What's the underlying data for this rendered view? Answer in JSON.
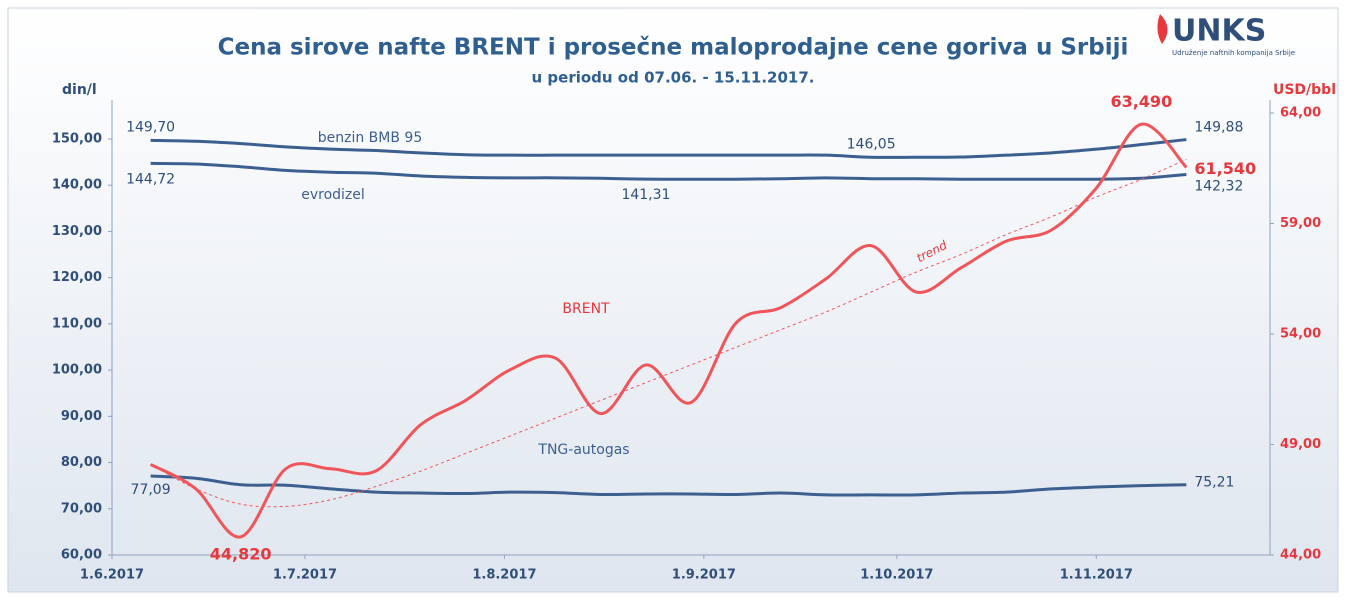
{
  "chart_data": {
    "type": "line",
    "title": "Cena sirove nafte BRENT i prosečne maloprodajne cene goriva u Srbiji",
    "subtitle": "u periodu od 07.06. - 15.11.2017.",
    "y_label": "din/l",
    "y2_label": "USD/bbl",
    "logo": "UNKS",
    "logo_subtitle": "Udruženje naftnih kompanija Srbije",
    "x": [
      "2017-06-07",
      "2017-06-14",
      "2017-06-21",
      "2017-06-28",
      "2017-07-05",
      "2017-07-12",
      "2017-07-19",
      "2017-07-26",
      "2017-08-02",
      "2017-08-09",
      "2017-08-16",
      "2017-08-23",
      "2017-08-30",
      "2017-09-06",
      "2017-09-13",
      "2017-09-20",
      "2017-09-27",
      "2017-10-04",
      "2017-10-11",
      "2017-10-18",
      "2017-10-25",
      "2017-11-01",
      "2017-11-08",
      "2017-11-15"
    ],
    "xlim": [
      "2017-06-01",
      "2017-11-28"
    ],
    "xticks": [
      {
        "value": "2017-06-01",
        "label": "1.6.2017"
      },
      {
        "value": "2017-07-01",
        "label": "1.7.2017"
      },
      {
        "value": "2017-08-01",
        "label": "1.8.2017"
      },
      {
        "value": "2017-09-01",
        "label": "1.9.2017"
      },
      {
        "value": "2017-10-01",
        "label": "1.10.2017"
      },
      {
        "value": "2017-11-01",
        "label": "1.11.2017"
      }
    ],
    "ylim": [
      60,
      150
    ],
    "yticks": [
      {
        "value": 60,
        "label": "60,00"
      },
      {
        "value": 70,
        "label": "70,00"
      },
      {
        "value": 80,
        "label": "80,00"
      },
      {
        "value": 90,
        "label": "90,00"
      },
      {
        "value": 100,
        "label": "100,00"
      },
      {
        "value": 110,
        "label": "110,00"
      },
      {
        "value": 120,
        "label": "120,00"
      },
      {
        "value": 130,
        "label": "130,00"
      },
      {
        "value": 140,
        "label": "140,00"
      },
      {
        "value": 150,
        "label": "150,00"
      }
    ],
    "y2lim": [
      44,
      64
    ],
    "y2ticks": [
      {
        "value": 44,
        "label": "44,00"
      },
      {
        "value": 49,
        "label": "49,00"
      },
      {
        "value": 54,
        "label": "54,00"
      },
      {
        "value": 59,
        "label": "59,00"
      },
      {
        "value": 64,
        "label": "64,00"
      }
    ],
    "grid": false,
    "series": [
      {
        "name": "benzin BMB 95",
        "color": "#3d5f8f",
        "values": [
          149.7,
          149.5,
          149.0,
          148.3,
          147.8,
          147.5,
          147.0,
          146.6,
          146.5,
          146.5,
          146.5,
          146.5,
          146.5,
          146.5,
          146.5,
          146.5,
          146.05,
          146.05,
          146.1,
          146.5,
          147.0,
          147.8,
          148.8,
          149.88
        ],
        "value_labels": [
          "149,70",
          null,
          null,
          null,
          null,
          null,
          null,
          null,
          null,
          null,
          null,
          null,
          null,
          null,
          null,
          null,
          "146,05",
          null,
          null,
          null,
          null,
          null,
          null,
          "149,88"
        ]
      },
      {
        "name": "evrodizel",
        "color": "#3d5f8f",
        "values": [
          144.72,
          144.6,
          144.0,
          143.2,
          142.8,
          142.6,
          142.0,
          141.7,
          141.6,
          141.6,
          141.5,
          141.31,
          141.3,
          141.3,
          141.4,
          141.6,
          141.4,
          141.4,
          141.3,
          141.3,
          141.3,
          141.3,
          141.5,
          142.32
        ],
        "value_labels": [
          "144,72",
          null,
          null,
          null,
          null,
          null,
          null,
          null,
          null,
          null,
          null,
          "141,31",
          null,
          null,
          null,
          null,
          null,
          null,
          null,
          null,
          null,
          null,
          null,
          "142,32"
        ]
      },
      {
        "name": "TNG-autogas",
        "color": "#3d5f8f",
        "values": [
          77.09,
          76.6,
          75.2,
          75.1,
          74.3,
          73.6,
          73.4,
          73.3,
          73.6,
          73.5,
          73.1,
          73.2,
          73.2,
          73.1,
          73.4,
          73.0,
          73.0,
          73.0,
          73.4,
          73.6,
          74.3,
          74.7,
          75.0,
          75.21
        ],
        "value_labels": [
          "77,09",
          null,
          null,
          null,
          null,
          null,
          null,
          null,
          null,
          null,
          null,
          null,
          null,
          null,
          null,
          null,
          null,
          null,
          null,
          null,
          null,
          null,
          null,
          "75,21"
        ]
      },
      {
        "name": "BRENT",
        "color": "#f0555a",
        "axis": "y2",
        "values": [
          48.1,
          47.0,
          44.82,
          47.9,
          47.9,
          47.8,
          49.9,
          51.0,
          52.4,
          52.9,
          50.4,
          52.6,
          50.9,
          54.5,
          55.2,
          56.5,
          58.0,
          55.9,
          57.0,
          58.2,
          58.7,
          60.6,
          63.49,
          61.54
        ],
        "value_labels": [
          null,
          null,
          "44,820",
          null,
          null,
          null,
          null,
          null,
          null,
          null,
          null,
          null,
          null,
          null,
          null,
          null,
          null,
          null,
          null,
          null,
          null,
          null,
          "63,490",
          "61,540"
        ]
      },
      {
        "name": "trend",
        "color": "#f0555a",
        "axis": "y2",
        "dashed": true,
        "values": [
          48.1,
          47.0,
          46.3,
          46.2,
          46.5,
          47.1,
          47.8,
          48.6,
          49.4,
          50.2,
          51.0,
          51.8,
          52.6,
          53.4,
          54.2,
          55.0,
          55.9,
          56.8,
          57.6,
          58.5,
          59.3,
          60.2,
          61.0,
          61.9
        ]
      }
    ]
  }
}
